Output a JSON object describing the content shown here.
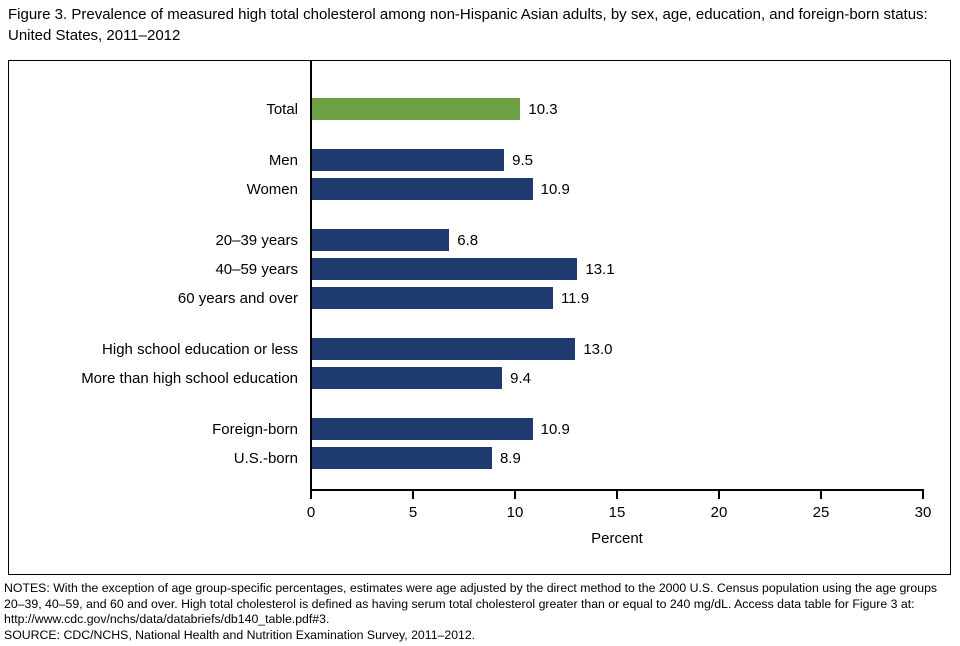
{
  "figure": {
    "title": "Figure 3. Prevalence of measured high total cholesterol among non-Hispanic Asian adults, by sex, age, education, and foreign-born status: United States, 2011–2012",
    "notes": "NOTES: With the exception of age group-specific percentages, estimates were age adjusted by the direct method to the 2000 U.S. Census population using the age groups 20–39, 40–59, and 60 and over. High total cholesterol is defined as having serum total cholesterol greater than or equal to 240 mg/dL. Access data table for Figure 3 at: http://www.cdc.gov/nchs/data/databriefs/db140_table.pdf#3.",
    "source": "SOURCE: CDC/NCHS, National Health and Nutrition Examination Survey, 2011–2012."
  },
  "colors": {
    "bar_default": "#1E3A6E",
    "bar_total": "#6CA243",
    "axis": "#000000"
  },
  "chart_data": {
    "type": "bar",
    "orientation": "horizontal",
    "title": "Figure 3. Prevalence of measured high total cholesterol among non-Hispanic Asian adults, by sex, age, education, and foreign-born status: United States, 2011–2012",
    "xlabel": "Percent",
    "xlim": [
      0,
      30
    ],
    "xticks": [
      "0",
      "5",
      "10",
      "15",
      "20",
      "25",
      "30"
    ],
    "grid": false,
    "legend": "none",
    "groups": [
      {
        "name": "total",
        "bars": [
          {
            "label": "Total",
            "value": 10.3,
            "display": "10.3",
            "color_key": "bar_total"
          }
        ]
      },
      {
        "name": "sex",
        "bars": [
          {
            "label": "Men",
            "value": 9.5,
            "display": "9.5"
          },
          {
            "label": "Women",
            "value": 10.9,
            "display": "10.9"
          }
        ]
      },
      {
        "name": "age",
        "bars": [
          {
            "label": "20–39 years",
            "value": 6.8,
            "display": "6.8"
          },
          {
            "label": "40–59 years",
            "value": 13.1,
            "display": "13.1"
          },
          {
            "label": "60 years and over",
            "value": 11.9,
            "display": "11.9"
          }
        ]
      },
      {
        "name": "education",
        "bars": [
          {
            "label": "High school education or less",
            "value": 13.0,
            "display": "13.0"
          },
          {
            "label": "More than high school education",
            "value": 9.4,
            "display": "9.4"
          }
        ]
      },
      {
        "name": "nativity",
        "bars": [
          {
            "label": "Foreign-born",
            "value": 10.9,
            "display": "10.9"
          },
          {
            "label": "U.S.-born",
            "value": 8.9,
            "display": "8.9"
          }
        ]
      }
    ]
  }
}
